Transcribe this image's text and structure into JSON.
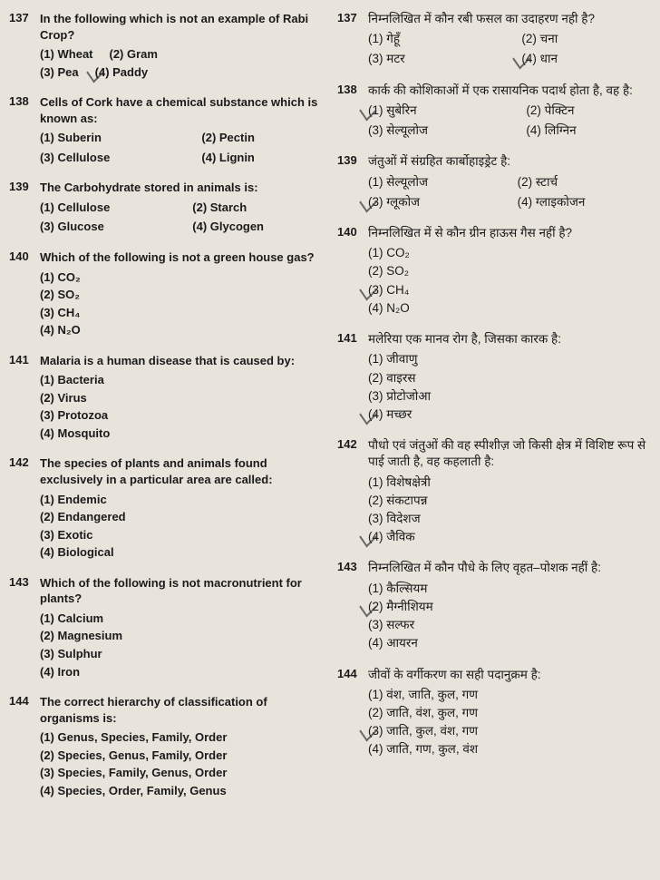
{
  "left": {
    "q137": {
      "num": "137",
      "text": "In the following which is not an example of Rabi Crop?",
      "o1": "(1) Wheat",
      "o2": "(2) Gram",
      "o3": "(3) Pea",
      "o4": "(4) Paddy"
    },
    "q138": {
      "num": "138",
      "text": "Cells of Cork have a chemical substance which is known as:",
      "o1": "(1) Suberin",
      "o2": "(2) Pectin",
      "o3": "(3) Cellulose",
      "o4": "(4) Lignin"
    },
    "q139": {
      "num": "139",
      "text": "The Carbohydrate stored in animals is:",
      "o1": "(1) Cellulose",
      "o2": "(2) Starch",
      "o3": "(3) Glucose",
      "o4": "(4) Glycogen"
    },
    "q140": {
      "num": "140",
      "text": "Which of the following is not a green house gas?",
      "o1": "(1) CO₂",
      "o2": "(2) SO₂",
      "o3": "(3) CH₄",
      "o4": "(4) N₂O"
    },
    "q141": {
      "num": "141",
      "text": "Malaria is a human disease that is caused by:",
      "o1": "(1) Bacteria",
      "o2": "(2) Virus",
      "o3": "(3) Protozoa",
      "o4": "(4) Mosquito"
    },
    "q142": {
      "num": "142",
      "text": "The species of plants and animals found exclusively in a particular area are called:",
      "o1": "(1) Endemic",
      "o2": "(2) Endangered",
      "o3": "(3) Exotic",
      "o4": "(4) Biological"
    },
    "q143": {
      "num": "143",
      "text": "Which of the following is not macronutrient for plants?",
      "o1": "(1) Calcium",
      "o2": "(2) Magnesium",
      "o3": "(3) Sulphur",
      "o4": "(4) Iron"
    },
    "q144": {
      "num": "144",
      "text": "The correct hierarchy of classification of organisms is:",
      "o1": "(1) Genus, Species, Family, Order",
      "o2": "(2) Species, Genus, Family, Order",
      "o3": "(3) Species, Family, Genus, Order",
      "o4": "(4) Species, Order, Family, Genus"
    }
  },
  "right": {
    "q137": {
      "num": "137",
      "text": "निम्नलिखित में कौन रबी फसल का उदाहरण नही है?",
      "o1": "(1) गेहूँ",
      "o2": "(2) चना",
      "o3": "(3) मटर",
      "o4": "(4) धान"
    },
    "q138": {
      "num": "138",
      "text": "कार्क की कोशिकाओं में एक रासायनिक पदार्थ होता है, वह है:",
      "o1": "(1) सुबेरिन",
      "o2": "(2) पेक्टिन",
      "o3": "(3) सेल्यूलोज",
      "o4": "(4) लिग्निन"
    },
    "q139": {
      "num": "139",
      "text": "जंतुओं में संग्रहित कार्बोहाइड्रेट है:",
      "o1": "(1) सेल्यूलोज",
      "o2": "(2) स्टार्च",
      "o3": "(3) ग्लूकोज",
      "o4": "(4) ग्लाइकोजन"
    },
    "q140": {
      "num": "140",
      "text": "निम्नलिखित में से कौन ग्रीन हाऊस गैस नहीं है?",
      "o1": "(1) CO₂",
      "o2": "(2) SO₂",
      "o3": "(3) CH₄",
      "o4": "(4) N₂O"
    },
    "q141": {
      "num": "141",
      "text": "मलेरिया एक मानव रोग है, जिसका कारक है:",
      "o1": "(1) जीवाणु",
      "o2": "(2) वाइरस",
      "o3": "(3) प्रोटोजोआ",
      "o4": "(4) मच्छर"
    },
    "q142": {
      "num": "142",
      "text": "पौधो एवं जंतुओं की वह स्पीशीज़ जो किसी क्षेत्र में विशिष्ट रूप से पाई जाती है, वह कहलाती है:",
      "o1": "(1) विशेषक्षेत्री",
      "o2": "(2) संकटापन्न",
      "o3": "(3) विदेशज",
      "o4": "(4) जैविक"
    },
    "q143": {
      "num": "143",
      "text": "निम्नलिखित में कौन पौधे के लिए वृहत–पोशक नहीं है:",
      "o1": "(1) कैल्सियम",
      "o2": "(2) मैग्नीशियम",
      "o3": "(3) सल्फर",
      "o4": "(4) आयरन"
    },
    "q144": {
      "num": "144",
      "text": "जीवों के वर्गीकरण का सही पदानुक्रम है:",
      "o1": "(1) वंश, जाति, कुल, गण",
      "o2": "(2) जाति, वंश, कुल, गण",
      "o3": "(3) जाति, कुल, वंश, गण",
      "o4": "(4) जाति, गण, कुल, वंश"
    }
  }
}
